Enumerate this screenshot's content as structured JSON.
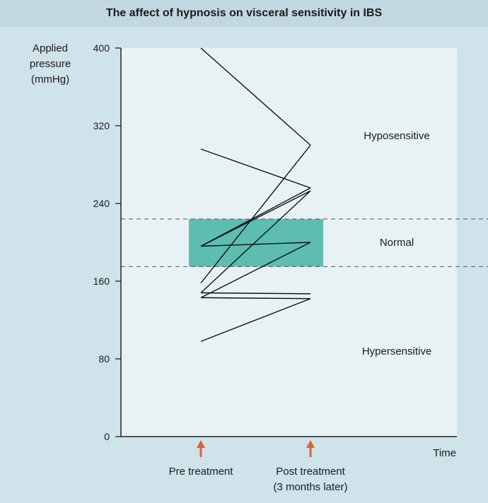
{
  "title": "The affect of hypnosis on visceral sensitivity in IBS",
  "chart_data": {
    "type": "line",
    "title": "The affect of hypnosis on visceral sensitivity in IBS",
    "ylabel": "Applied\npressure\n(mmHg)",
    "xlabel": "Time",
    "ylim": [
      0,
      400
    ],
    "yticks": [
      "0",
      "80",
      "160",
      "240",
      "320",
      "400"
    ],
    "categories": [
      "Pre treatment",
      "Post treatment\n(3 months later)"
    ],
    "normal_range": [
      175,
      224
    ],
    "regions": [
      {
        "label": "Hyposensitive",
        "y": 310
      },
      {
        "label": "Normal",
        "y": 200
      },
      {
        "label": "Hypersensitive",
        "y": 88
      }
    ],
    "series": [
      {
        "values": [
          400,
          300
        ]
      },
      {
        "values": [
          296,
          256
        ]
      },
      {
        "values": [
          196,
          256
        ]
      },
      {
        "values": [
          196,
          253
        ]
      },
      {
        "values": [
          196,
          200
        ]
      },
      {
        "values": [
          158,
          300
        ]
      },
      {
        "values": [
          148,
          253
        ]
      },
      {
        "values": [
          148,
          147
        ]
      },
      {
        "values": [
          143,
          200
        ]
      },
      {
        "values": [
          143,
          142
        ]
      },
      {
        "values": [
          98,
          142
        ]
      }
    ],
    "grid": false
  }
}
